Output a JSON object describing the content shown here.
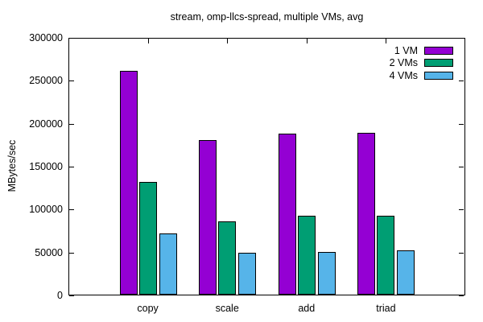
{
  "chart_data": {
    "type": "bar",
    "title": "stream, omp-llcs-spread, multiple VMs, avg",
    "xlabel": "",
    "ylabel": "MBytes/sec",
    "categories": [
      "copy",
      "scale",
      "add",
      "triad"
    ],
    "series": [
      {
        "name": "1 VM",
        "color": "#9400d3",
        "values": [
          262000,
          181000,
          188500,
          189500
        ]
      },
      {
        "name": "2 VMs",
        "color": "#009e73",
        "values": [
          132500,
          86000,
          92500,
          93000
        ]
      },
      {
        "name": "4 VMs",
        "color": "#56b4e9",
        "values": [
          72000,
          49500,
          51000,
          52500
        ]
      }
    ],
    "ylim": [
      0,
      300000
    ],
    "ytick_step": 50000,
    "ytick_labels": [
      "0",
      "50000",
      "100000",
      "150000",
      "200000",
      "250000",
      "300000"
    ],
    "legend_position": "top-right-inside",
    "grid": false,
    "axis_color": "#000000",
    "bar_border_color": "#000000",
    "background_color": "#ffffff",
    "text_color": "#000000"
  }
}
